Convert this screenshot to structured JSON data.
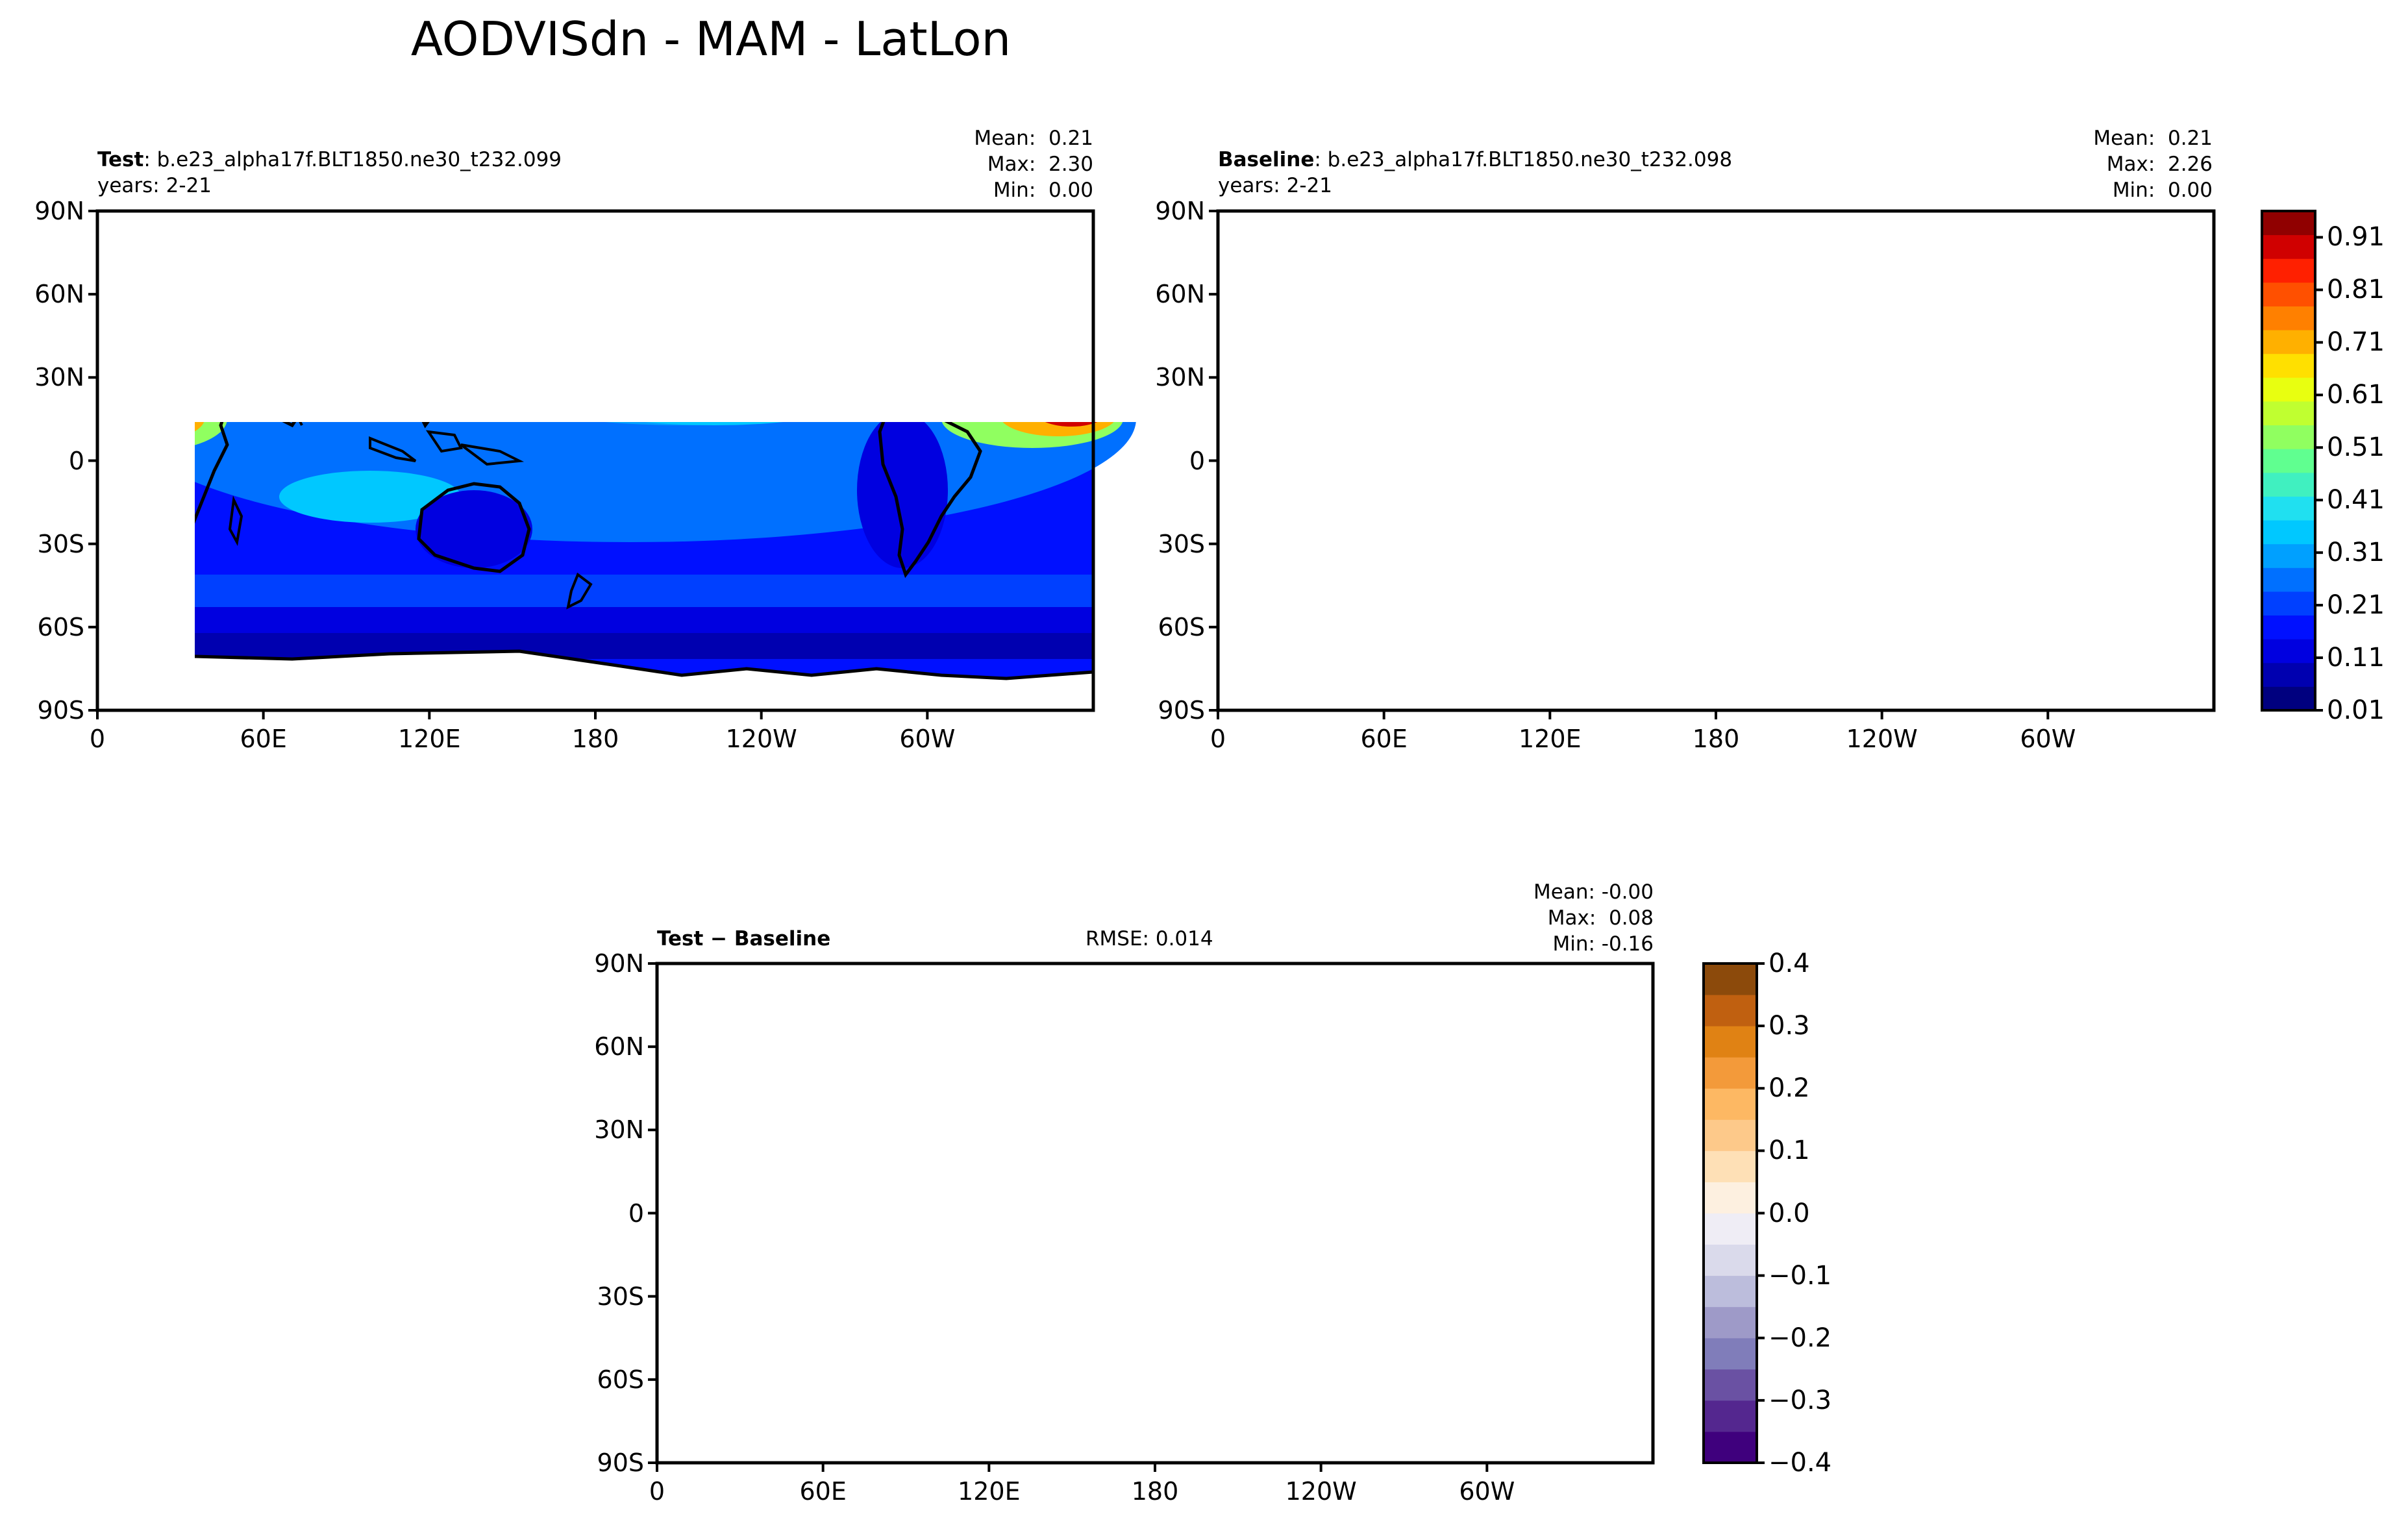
{
  "figure": {
    "title": "AODVISdn - MAM - LatLon"
  },
  "panels": [
    {
      "id": "test",
      "label_bold": "Test",
      "label_rest": ": b.e23_alpha17f.BLT1850.ne30_t232.099",
      "years": "years: 2-21",
      "stats": [
        "Mean:  0.21",
        "Max:  2.30",
        "Min:  0.00"
      ]
    },
    {
      "id": "baseline",
      "label_bold": "Baseline",
      "label_rest": ": b.e23_alpha17f.BLT1850.ne30_t232.098",
      "years": "years: 2-21",
      "stats": [
        "Mean:  0.21",
        "Max:  2.26",
        "Min:  0.00"
      ]
    },
    {
      "id": "diff",
      "label_bold": "Test − Baseline",
      "rmse": "RMSE: 0.014",
      "stats": [
        "Mean: -0.00",
        "Max:  0.08",
        "Min: -0.16"
      ]
    }
  ],
  "chart_data": [
    {
      "type": "heatmap",
      "panel": "Test",
      "x_ticks": [
        "0",
        "60E",
        "120E",
        "180",
        "120W",
        "60W"
      ],
      "y_ticks": [
        "90N",
        "60N",
        "30N",
        "0",
        "30S",
        "60S",
        "90S"
      ],
      "xlim": [
        0,
        360
      ],
      "ylim": [
        -90,
        90
      ],
      "colorbar_ticks": [
        "0.91",
        "0.81",
        "0.71",
        "0.61",
        "0.51",
        "0.41",
        "0.31",
        "0.21",
        "0.11",
        "0.01"
      ],
      "colorbar_range": [
        0.01,
        0.96
      ],
      "colormap": [
        "#00007f",
        "#0000b0",
        "#0000e0",
        "#0010ff",
        "#0040ff",
        "#0070ff",
        "#00a0ff",
        "#00c8ff",
        "#20e0f0",
        "#40f0c0",
        "#60ff90",
        "#90ff60",
        "#c0ff30",
        "#e8ff10",
        "#ffe000",
        "#ffb000",
        "#ff8000",
        "#ff5000",
        "#ff2000",
        "#d00000",
        "#900000"
      ]
    },
    {
      "type": "heatmap",
      "panel": "Baseline",
      "x_ticks": [
        "0",
        "60E",
        "120E",
        "180",
        "120W",
        "60W"
      ],
      "y_ticks": [
        "90N",
        "60N",
        "30N",
        "0",
        "30S",
        "60S",
        "90S"
      ],
      "xlim": [
        0,
        360
      ],
      "ylim": [
        -90,
        90
      ]
    },
    {
      "type": "heatmap",
      "panel": "Test − Baseline",
      "x_ticks": [
        "0",
        "60E",
        "120E",
        "180",
        "120W",
        "60W"
      ],
      "y_ticks": [
        "90N",
        "60N",
        "30N",
        "0",
        "30S",
        "60S",
        "90S"
      ],
      "xlim": [
        0,
        360
      ],
      "ylim": [
        -90,
        90
      ],
      "colorbar_ticks": [
        "0.4",
        "0.3",
        "0.2",
        "0.1",
        "0.0",
        "−0.1",
        "−0.2",
        "−0.3",
        "−0.4"
      ],
      "colorbar_range": [
        -0.4,
        0.4
      ],
      "colormap": [
        "#3f007d",
        "#54278f",
        "#6a51a3",
        "#807dba",
        "#9e9ac8",
        "#bcbddc",
        "#dadaeb",
        "#efedf5",
        "#fdf0e0",
        "#fee0b6",
        "#fdc98a",
        "#fdb863",
        "#f39a3a",
        "#e08214",
        "#c06010",
        "#8c4a0b"
      ]
    }
  ]
}
